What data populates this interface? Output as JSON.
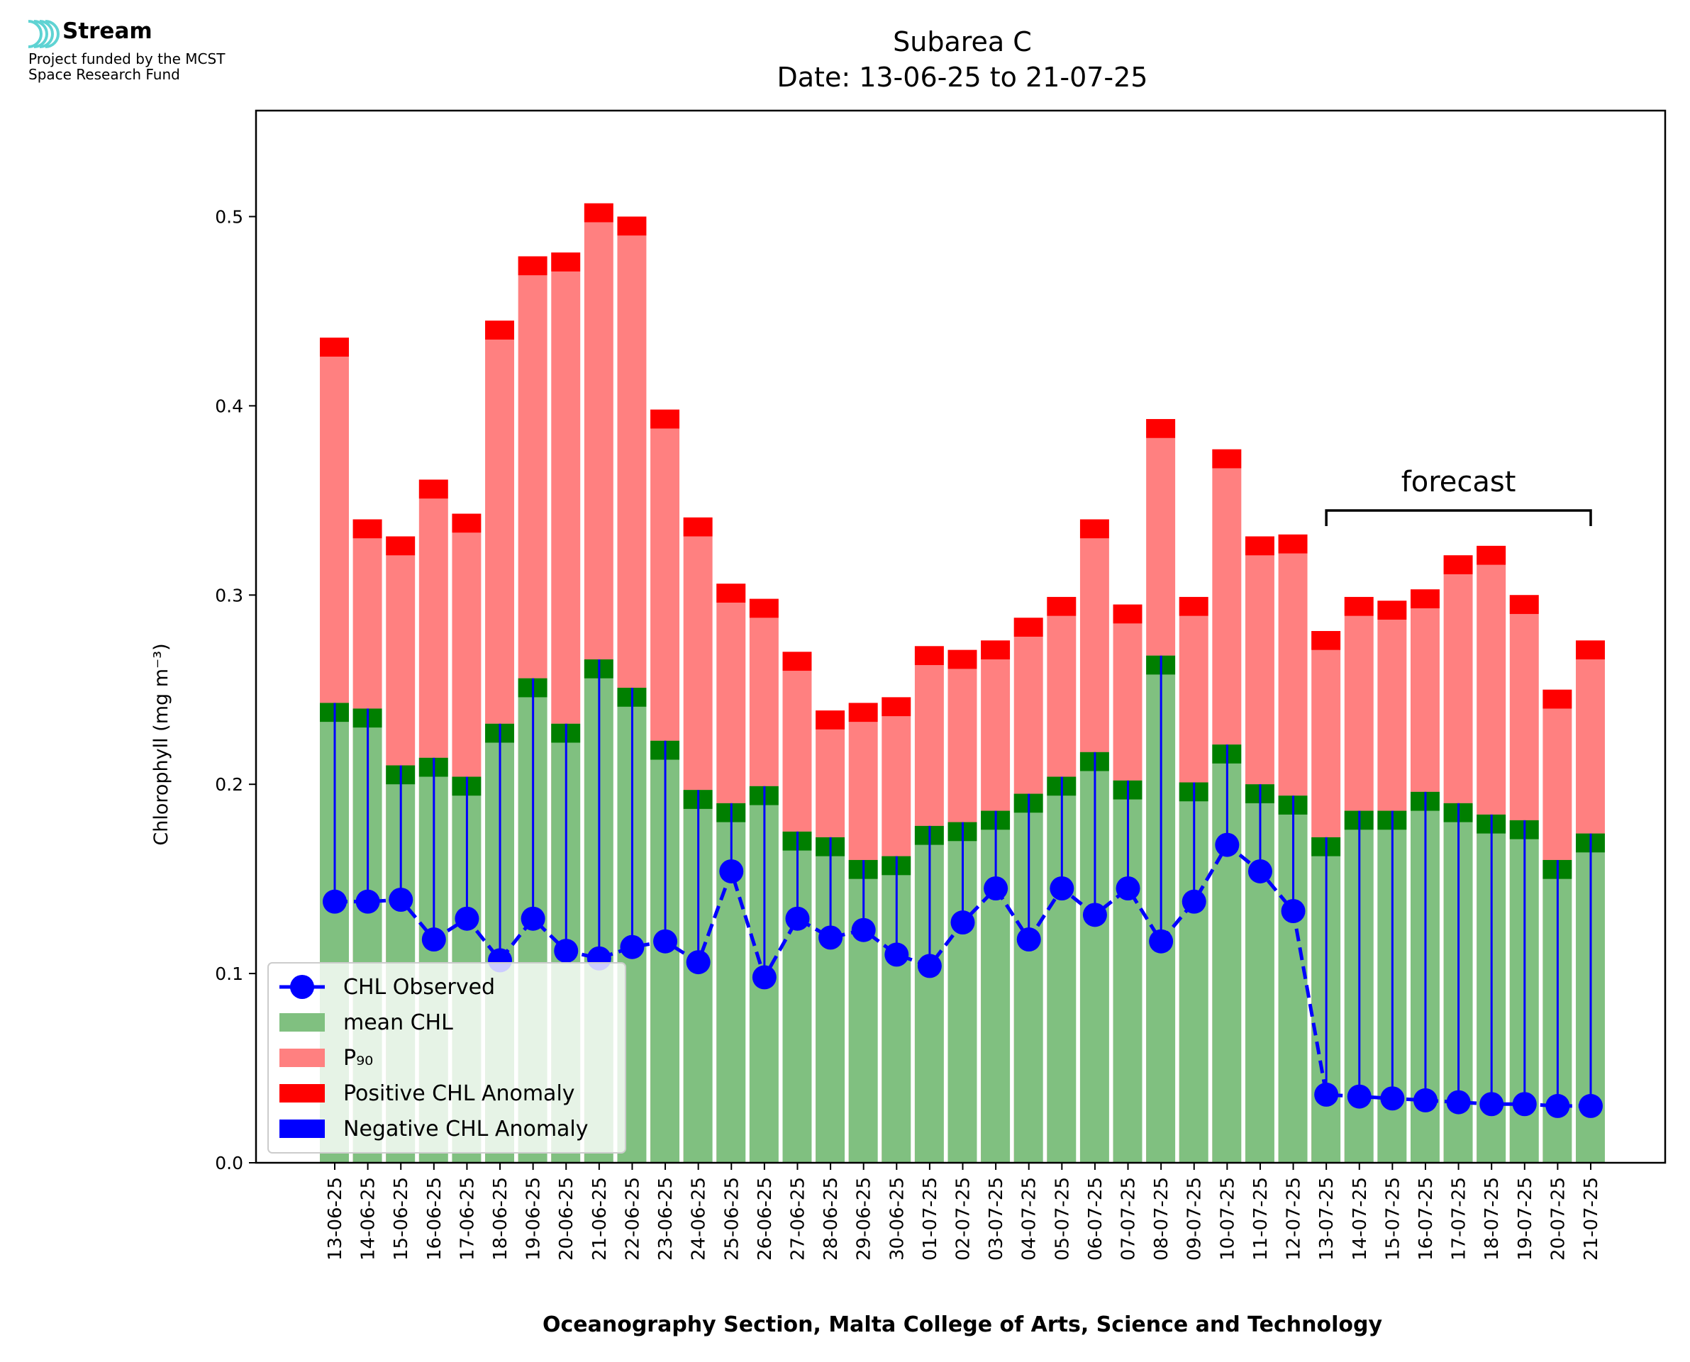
{
  "logo": {
    "name": "Stream",
    "subtitle_line1": "Project funded by the MCST",
    "subtitle_line2": "Space Research Fund",
    "colors": {
      "waves": "#5fd3d3"
    }
  },
  "chart_data": {
    "type": "bar",
    "title": "Subarea C",
    "subtitle": "Date: 13-06-25 to 21-07-25",
    "xlabel": "Oceanography Section, Malta College of Arts, Science and Technology",
    "ylabel": "Chlorophyll (mg m⁻³)",
    "ylim": [
      0,
      0.556
    ],
    "yticks": [
      "0.0",
      "0.1",
      "0.2",
      "0.3",
      "0.4",
      "0.5"
    ],
    "grid": false,
    "legend_position": "lower-left",
    "categories": [
      "13-06-25",
      "14-06-25",
      "15-06-25",
      "16-06-25",
      "17-06-25",
      "18-06-25",
      "19-06-25",
      "20-06-25",
      "21-06-25",
      "22-06-25",
      "23-06-25",
      "24-06-25",
      "25-06-25",
      "26-06-25",
      "27-06-25",
      "28-06-25",
      "29-06-25",
      "30-06-25",
      "01-07-25",
      "02-07-25",
      "03-07-25",
      "04-07-25",
      "05-07-25",
      "06-07-25",
      "07-07-25",
      "08-07-25",
      "09-07-25",
      "10-07-25",
      "11-07-25",
      "12-07-25",
      "13-07-25",
      "14-07-25",
      "15-07-25",
      "16-07-25",
      "17-07-25",
      "18-07-25",
      "19-07-25",
      "20-07-25",
      "21-07-25"
    ],
    "series": [
      {
        "name": "CHL Observed",
        "type": "line",
        "style": "dashed-marker",
        "color": "#0000ff",
        "values": [
          0.138,
          0.138,
          0.139,
          0.118,
          0.129,
          0.107,
          0.129,
          0.112,
          0.108,
          0.114,
          0.117,
          0.106,
          0.154,
          0.098,
          0.129,
          0.119,
          0.123,
          0.11,
          0.104,
          0.127,
          0.145,
          0.118,
          0.145,
          0.131,
          0.145,
          0.117,
          0.138,
          0.168,
          0.154,
          0.133,
          0.036,
          0.035,
          0.034,
          0.033,
          0.032,
          0.031,
          0.031,
          0.03,
          0.03
        ]
      },
      {
        "name": "mean CHL",
        "type": "bar",
        "color": "#80c080",
        "values": [
          0.243,
          0.24,
          0.21,
          0.214,
          0.204,
          0.232,
          0.256,
          0.232,
          0.266,
          0.251,
          0.223,
          0.197,
          0.19,
          0.199,
          0.175,
          0.172,
          0.16,
          0.162,
          0.178,
          0.18,
          0.186,
          0.195,
          0.204,
          0.217,
          0.202,
          0.268,
          0.201,
          0.221,
          0.2,
          0.194,
          0.172,
          0.186,
          0.186,
          0.196,
          0.19,
          0.184,
          0.181,
          0.16,
          0.174
        ]
      },
      {
        "name": "P₉₀",
        "type": "bar",
        "color": "#ff8080",
        "values": [
          0.436,
          0.34,
          0.331,
          0.361,
          0.343,
          0.445,
          0.479,
          0.481,
          0.507,
          0.5,
          0.398,
          0.341,
          0.306,
          0.298,
          0.27,
          0.239,
          0.243,
          0.246,
          0.273,
          0.271,
          0.276,
          0.288,
          0.299,
          0.34,
          0.295,
          0.393,
          0.299,
          0.377,
          0.331,
          0.332,
          0.281,
          0.299,
          0.297,
          0.303,
          0.321,
          0.326,
          0.3,
          0.25,
          0.276
        ]
      },
      {
        "name": "Positive CHL Anomaly",
        "type": "marker",
        "color": "#ff0000"
      },
      {
        "name": "Negative CHL Anomaly",
        "type": "marker",
        "color": "#0000ff"
      }
    ],
    "annotations": [
      {
        "text": "forecast",
        "from": "13-07-25",
        "to": "21-07-25"
      }
    ],
    "colors": {
      "mean_cap": "#007f00",
      "p90_cap": "#ff0000",
      "observed": "#0000ff"
    }
  }
}
